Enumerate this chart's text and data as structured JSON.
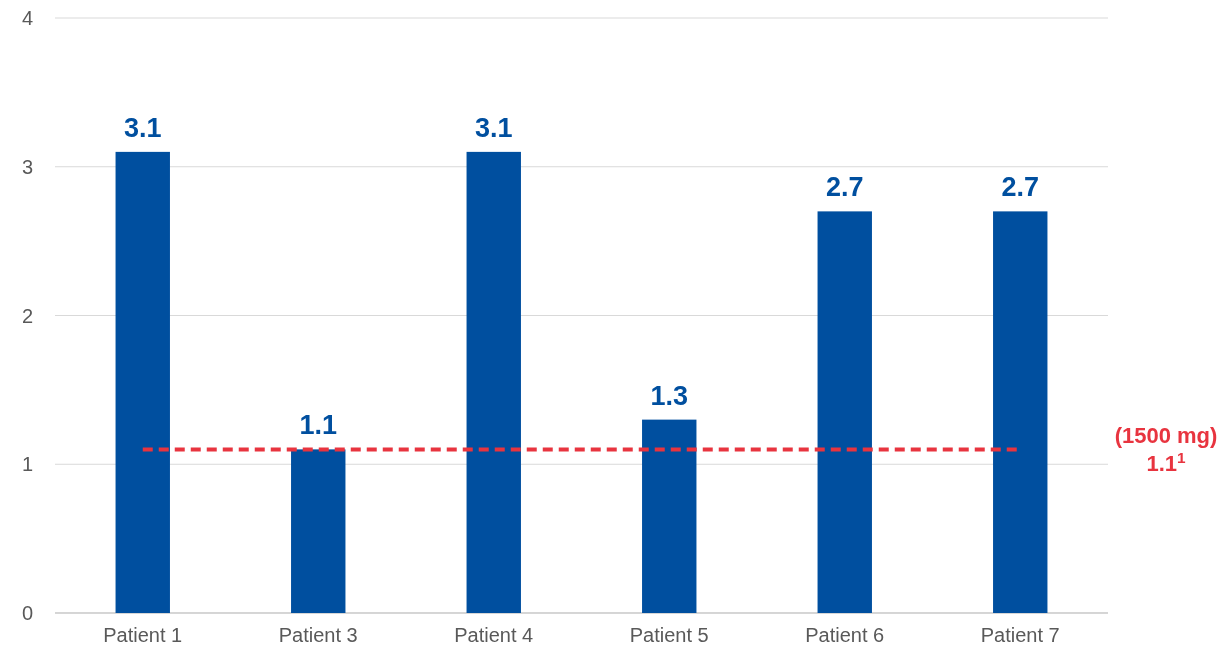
{
  "chart_data": {
    "type": "bar",
    "categories": [
      "Patient 1",
      "Patient 3",
      "Patient 4",
      "Patient 5",
      "Patient 6",
      "Patient 7"
    ],
    "values": [
      3.1,
      1.1,
      3.1,
      1.3,
      2.7,
      2.7
    ],
    "color": "#004f9f",
    "data_labels": true,
    "ylim": [
      0,
      4
    ],
    "yticks": [
      0,
      1,
      2,
      3,
      4
    ],
    "grid": "y",
    "ref_lines": [
      {
        "axis": "y",
        "value": 1.1,
        "label": "(1500 mg) 1.1$^{1}$",
        "color": "#e8343f",
        "line_style": "dashed"
      }
    ]
  }
}
